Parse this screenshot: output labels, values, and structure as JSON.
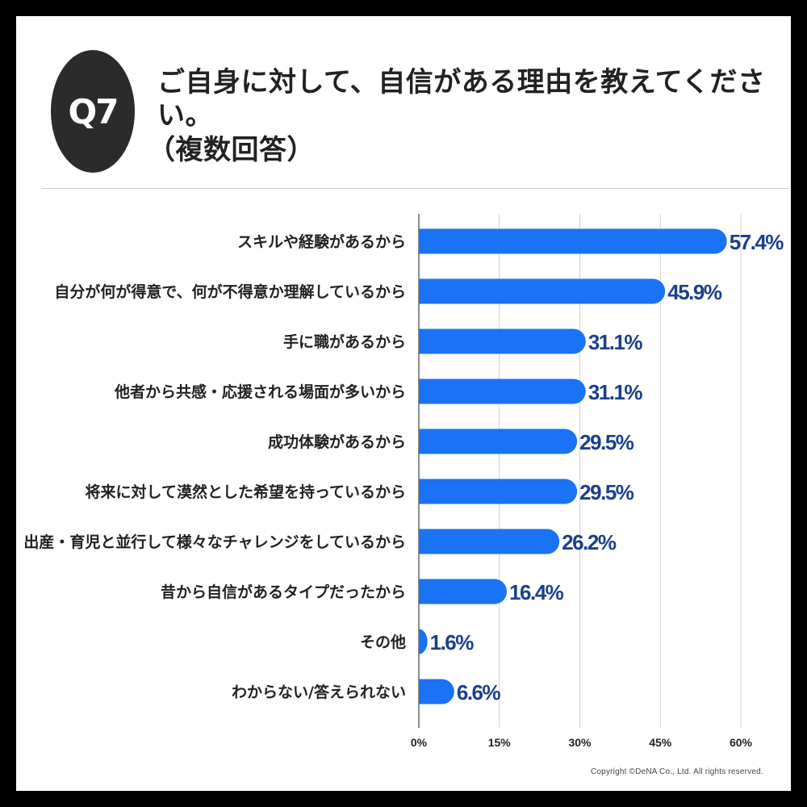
{
  "badge": "Q7",
  "title": {
    "line1": "ご自身に対して、自信がある理由を教えてください。",
    "line2": "（複数回答）"
  },
  "copyright": "Copyright ©DeNA Co., Ltd. All rights reserved.",
  "colors": {
    "bar": "#1a72f5",
    "value_label": "#1a3f8c",
    "grid": "#cfcfcf",
    "axis": "#666666",
    "label": "#222222"
  },
  "chart_data": {
    "type": "bar",
    "orientation": "horizontal",
    "title": "",
    "xlabel": "",
    "ylabel": "",
    "xlim": [
      0,
      60
    ],
    "ticks": [
      0,
      15,
      30,
      45,
      60
    ],
    "tick_labels": [
      "0%",
      "15%",
      "30%",
      "45%",
      "60%"
    ],
    "grid": true,
    "categories": [
      "スキルや経験があるから",
      "自分が何が得意で、何が不得意か理解しているから",
      "手に職があるから",
      "他者から共感・応援される場面が多いから",
      "成功体験があるから",
      "将来に対して漠然とした希望を持っているから",
      "出産・育児と並行して様々なチャレンジをしているから",
      "昔から自信があるタイプだったから",
      "その他",
      "わからない/答えられない"
    ],
    "values": [
      57.4,
      45.9,
      31.1,
      31.1,
      29.5,
      29.5,
      26.2,
      16.4,
      1.6,
      6.6
    ],
    "value_labels": [
      "57.4%",
      "45.9%",
      "31.1%",
      "31.1%",
      "29.5%",
      "29.5%",
      "26.2%",
      "16.4%",
      "1.6%",
      "6.6%"
    ]
  }
}
